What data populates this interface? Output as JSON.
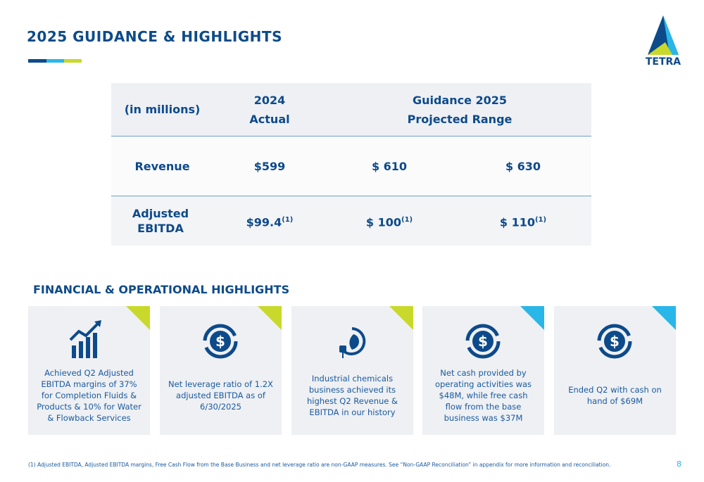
{
  "header": {
    "title": "2025 GUIDANCE & HIGHLIGHTS",
    "logo": "TETRA"
  },
  "table": {
    "header": [
      "(in millions)",
      [
        "2024",
        "Actual"
      ],
      [
        "Guidance 2025",
        "Projected Range"
      ]
    ],
    "rows": [
      [
        "Revenue",
        "$599",
        "$ 610",
        "$ 630"
      ],
      [
        "Adjusted EBITDA",
        "$99.4",
        "$ 100",
        "$ 110"
      ]
    ],
    "footnote_marker": "(1)"
  },
  "section": {
    "title": "FINANCIAL & OPERATIONAL HIGHLIGHTS"
  },
  "cards": [
    "Achieved Q2 Adjusted EBITDA margins of 37% for Completion Fluids & Products & 10% for Water & Flowback Services",
    "Net leverage ratio of 1.2X adjusted EBITDA as of 6/30/2025",
    "Industrial chemicals business achieved its highest Q2 Revenue & EBITDA in our history",
    "Net cash provided by operating activities was $48M, while free cash flow from the base business was $37M",
    "Ended Q2 with cash on hand of $69M"
  ],
  "footer": {
    "note": "(1) Adjusted EBITDA, Adjusted EBITDA margins, Free Cash Flow from the Base Business and net leverage ratio are non-GAAP measures. See “Non-GAAP Reconciliation” in appendix for more information and reconciliation.",
    "page": "8"
  }
}
